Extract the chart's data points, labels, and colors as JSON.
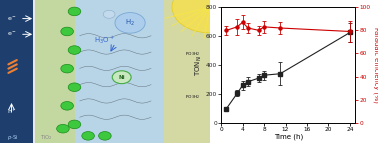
{
  "black_x": [
    1,
    3,
    4,
    5,
    7,
    8,
    11,
    24
  ],
  "black_y": [
    100,
    205,
    260,
    285,
    310,
    330,
    340,
    625
  ],
  "black_yerr": [
    12,
    20,
    30,
    30,
    30,
    30,
    80,
    65
  ],
  "red_x": [
    1,
    3,
    4,
    5,
    7,
    8,
    11,
    24
  ],
  "red_y": [
    80,
    83,
    87,
    82,
    80,
    83,
    82,
    79
  ],
  "red_yerr": [
    4,
    7,
    6,
    4,
    4,
    5,
    5,
    9
  ],
  "xlabel": "Time (h)",
  "ylabel_left": "TON$_{\\rm Ni}$",
  "ylabel_right": "Faradaic efficiency (%)",
  "xlim": [
    0,
    25
  ],
  "ylim_left": [
    0,
    800
  ],
  "ylim_right": [
    0,
    100
  ],
  "xticks": [
    0,
    4,
    8,
    12,
    16,
    20,
    24
  ],
  "yticks_left": [
    0,
    200,
    400,
    600,
    800
  ],
  "yticks_right": [
    0,
    20,
    40,
    60,
    80,
    100
  ],
  "black_color": "#222222",
  "red_color": "#cc0000",
  "bg_color": "#ffffff",
  "fig_bg": "#ffffff",
  "left_bg": "#b8d5e8",
  "psi_color": "#1e3f6e",
  "tio2_color": "#c5d898",
  "sun_color": "#f5e050",
  "h2_bubble_color": "#a8ccee",
  "small_bubble_color": "#c8ddf0",
  "green_circle_color": "#3ec83e",
  "green_circle_edge": "#1a8c1a",
  "h2o_text_color": "#3366cc",
  "h2_text_color": "#2255aa",
  "white": "#ffffff",
  "psi_label_color": "#cccccc",
  "arrow_color": "#cccccc"
}
